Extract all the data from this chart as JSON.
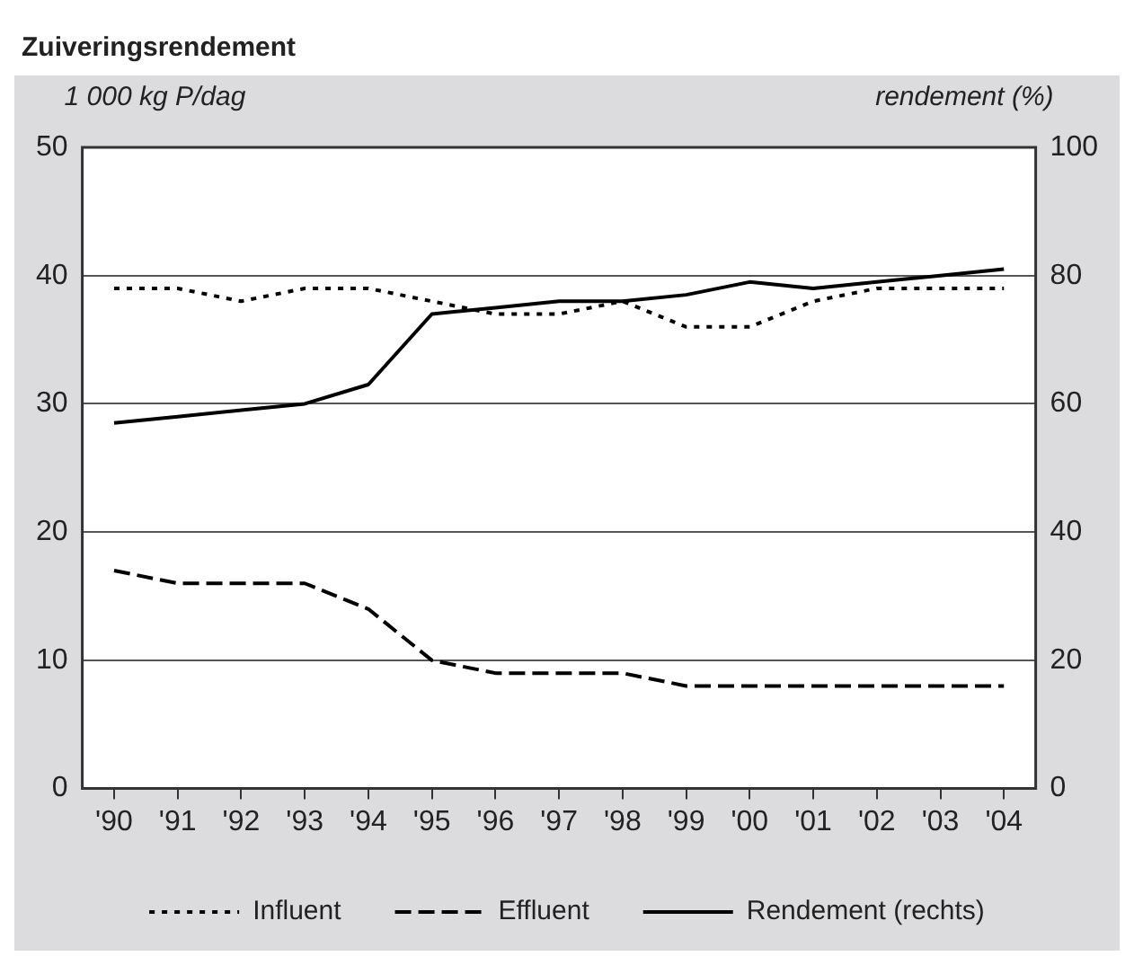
{
  "chart_data": {
    "type": "line",
    "title": "Zuiveringsrendement",
    "ylabel": "1 000 kg P/dag",
    "y2label": "rendement (%)",
    "categories": [
      "'90",
      "'91",
      "'92",
      "'93",
      "'94",
      "'95",
      "'96",
      "'97",
      "'98",
      "'99",
      "'00",
      "'01",
      "'02",
      "'03",
      "'04"
    ],
    "series": [
      {
        "name": "Influent",
        "color": "#000000",
        "line_style": "dotted",
        "values": [
          39,
          39,
          38,
          39,
          39,
          38,
          37,
          37,
          38,
          36,
          36,
          38,
          39,
          39,
          39
        ]
      },
      {
        "name": "Effluent",
        "color": "#000000",
        "line_style": "dashed",
        "values": [
          17,
          16,
          16,
          16,
          14,
          10,
          9,
          9,
          9,
          8,
          8,
          8,
          8,
          8,
          8
        ]
      },
      {
        "name": "Rendement (rechts)",
        "color": "#000000",
        "line_style": "solid",
        "axis": "y2",
        "values": [
          57,
          58,
          59,
          60,
          63,
          74,
          75,
          76,
          76,
          77,
          79,
          78,
          79,
          80,
          81
        ]
      }
    ],
    "ylim": [
      0,
      50
    ],
    "yticks": [
      0,
      10,
      20,
      30,
      40,
      50
    ],
    "y2lim": [
      0,
      100
    ],
    "y2ticks": [
      0,
      20,
      40,
      60,
      80,
      100
    ],
    "grid": "y",
    "legend": "bottom",
    "marker": "none"
  }
}
